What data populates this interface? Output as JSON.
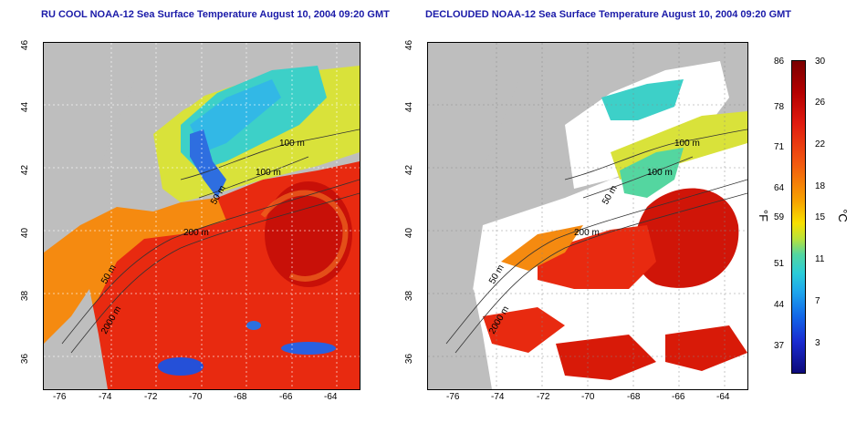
{
  "titles": {
    "left": "RU COOL NOAA-12 Sea Surface Temperature August 10, 2004 09:20 GMT",
    "right": "DECLOUDED NOAA-12 Sea Surface Temperature August 10, 2004 09:20 GMT"
  },
  "axes": {
    "x_ticks": [
      "-76",
      "-74",
      "-72",
      "-70",
      "-68",
      "-66",
      "-64"
    ],
    "y_ticks": [
      "46",
      "44",
      "42",
      "40",
      "38",
      "36"
    ],
    "x_range": [
      -77,
      -63
    ],
    "y_range": [
      35,
      46
    ]
  },
  "contour_labels": {
    "left": [
      "100 m",
      "100 m",
      "50 m",
      "200 m",
      "50 m",
      "2000 m"
    ],
    "right": [
      "100 m",
      "100 m",
      "50 m",
      "200 m",
      "50 m",
      "2000 m"
    ]
  },
  "colorbar": {
    "fahrenheit_ticks": [
      "86",
      "78",
      "71",
      "64",
      "59",
      "51",
      "44",
      "37"
    ],
    "celsius_ticks": [
      "30",
      "26",
      "22",
      "18",
      "15",
      "11",
      "7",
      "3"
    ],
    "unit_f": "°F",
    "unit_c": "°C",
    "colors": [
      "#7a0000",
      "#e01b10",
      "#f7a300",
      "#f7e000",
      "#54d6a0",
      "#1ea6ec",
      "#1a2bd0",
      "#0d0a7a"
    ]
  },
  "land_color": "#bebebe",
  "cloud_color": "#ffffff"
}
